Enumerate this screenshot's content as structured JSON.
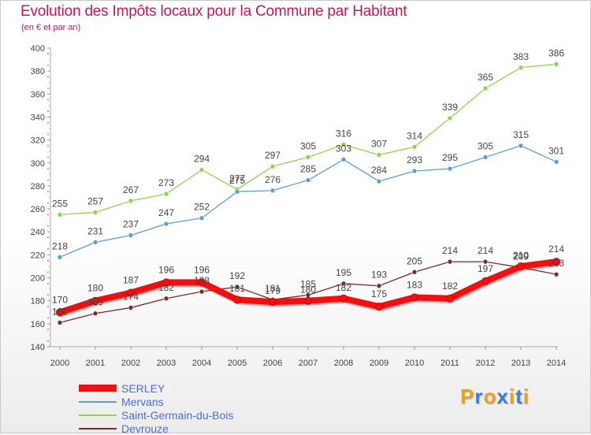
{
  "header": {
    "title": "Evolution des Impôts locaux pour la Commune par Habitant",
    "subtitle": "(en € et par an)"
  },
  "logo": {
    "letters": [
      "P",
      "r",
      "o",
      "x",
      "i",
      "t",
      "i"
    ],
    "colors": [
      "#e8a020",
      "#3a7fd5",
      "#e8a020",
      "#3a7fd5",
      "#e8a020",
      "#3a7fd5",
      "#e8a020"
    ]
  },
  "chart_data": {
    "type": "line",
    "title": "Evolution des Impôts locaux pour la Commune par Habitant",
    "subtitle": "(en € et par an)",
    "x": [
      "2000",
      "2001",
      "2002",
      "2003",
      "2004",
      "2005",
      "2006",
      "2007",
      "2008",
      "2009",
      "2010",
      "2011",
      "2012",
      "2013",
      "2014"
    ],
    "ylim": [
      140,
      400
    ],
    "yticks": [
      140,
      160,
      180,
      200,
      220,
      240,
      260,
      280,
      300,
      320,
      340,
      360,
      380,
      400
    ],
    "grid": false,
    "legend_position": "bottom-left",
    "series": [
      {
        "name": "SERLEY",
        "color": "#ee1111",
        "values": [
          170,
          180,
          187,
          196,
          196,
          181,
          179,
          180,
          182,
          175,
          183,
          182,
          197,
          210,
          214
        ],
        "labels": [
          "170",
          "180",
          "187",
          "196",
          "196",
          "181",
          "179",
          "180",
          "182",
          "175",
          "183",
          "182",
          "197",
          "210",
          "214"
        ],
        "labels_shown": [
          true,
          true,
          true,
          true,
          true,
          false,
          false,
          false,
          false,
          true,
          true,
          true,
          true,
          false,
          true
        ]
      },
      {
        "name": "Mervans",
        "color": "#5b9fd0",
        "values": [
          218,
          231,
          237,
          247,
          252,
          275,
          276,
          285,
          303,
          284,
          293,
          295,
          305,
          315,
          301
        ],
        "labels_shown": [
          true,
          true,
          true,
          true,
          true,
          true,
          true,
          true,
          true,
          true,
          true,
          true,
          true,
          true,
          true
        ]
      },
      {
        "name": "Saint-Germain-du-Bois",
        "color": "#8fd44f",
        "values": [
          255,
          257,
          267,
          273,
          294,
          277,
          297,
          305,
          316,
          307,
          314,
          339,
          365,
          383,
          386
        ],
        "labels_shown": [
          true,
          true,
          true,
          true,
          true,
          true,
          true,
          true,
          true,
          true,
          true,
          true,
          true,
          true,
          true
        ]
      },
      {
        "name": "Devrouze",
        "color": "#7a2a2a",
        "values": [
          161,
          169,
          174,
          182,
          188,
          192,
          181,
          185,
          195,
          193,
          205,
          214,
          214,
          209,
          203
        ],
        "labels_shown": [
          true,
          true,
          true,
          true,
          true,
          true,
          true,
          true,
          true,
          true,
          true,
          true,
          true,
          true,
          true
        ]
      }
    ],
    "overlap_labels": [
      "181",
      "179",
      "180",
      "182",
      "210"
    ]
  }
}
